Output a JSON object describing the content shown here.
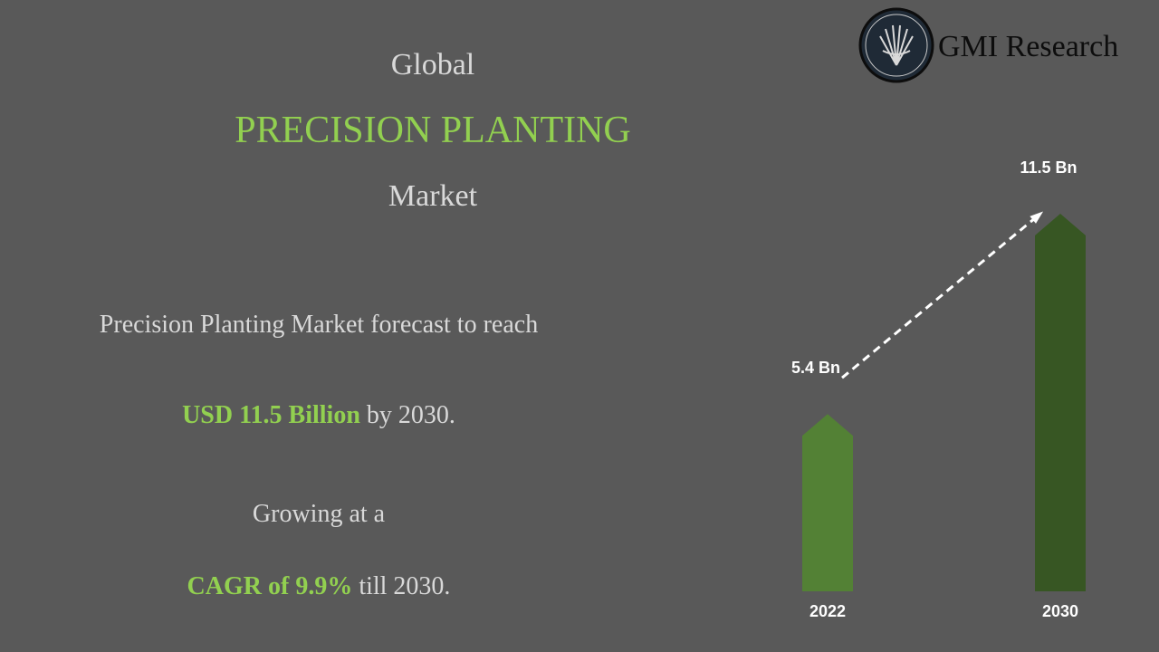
{
  "header": {
    "line1": "Global",
    "line2": "PRECISION PLANTING",
    "line3": "Market"
  },
  "logo": {
    "text": "GMI Research"
  },
  "body": {
    "forecast": "Precision Planting Market forecast to reach",
    "value_highlight": "USD 11.5 Billion",
    "value_rest": "by 2030.",
    "growth": "Growing at a",
    "cagr_highlight": "CAGR of 9.9%",
    "cagr_rest": "till 2030."
  },
  "chart_data": {
    "type": "bar",
    "categories": [
      "2022",
      "2030"
    ],
    "values": [
      5.4,
      11.5
    ],
    "value_labels": [
      "5.4 Bn",
      "11.5 Bn"
    ],
    "colors": [
      "#538135",
      "#375623"
    ],
    "trend_arrow": true
  }
}
